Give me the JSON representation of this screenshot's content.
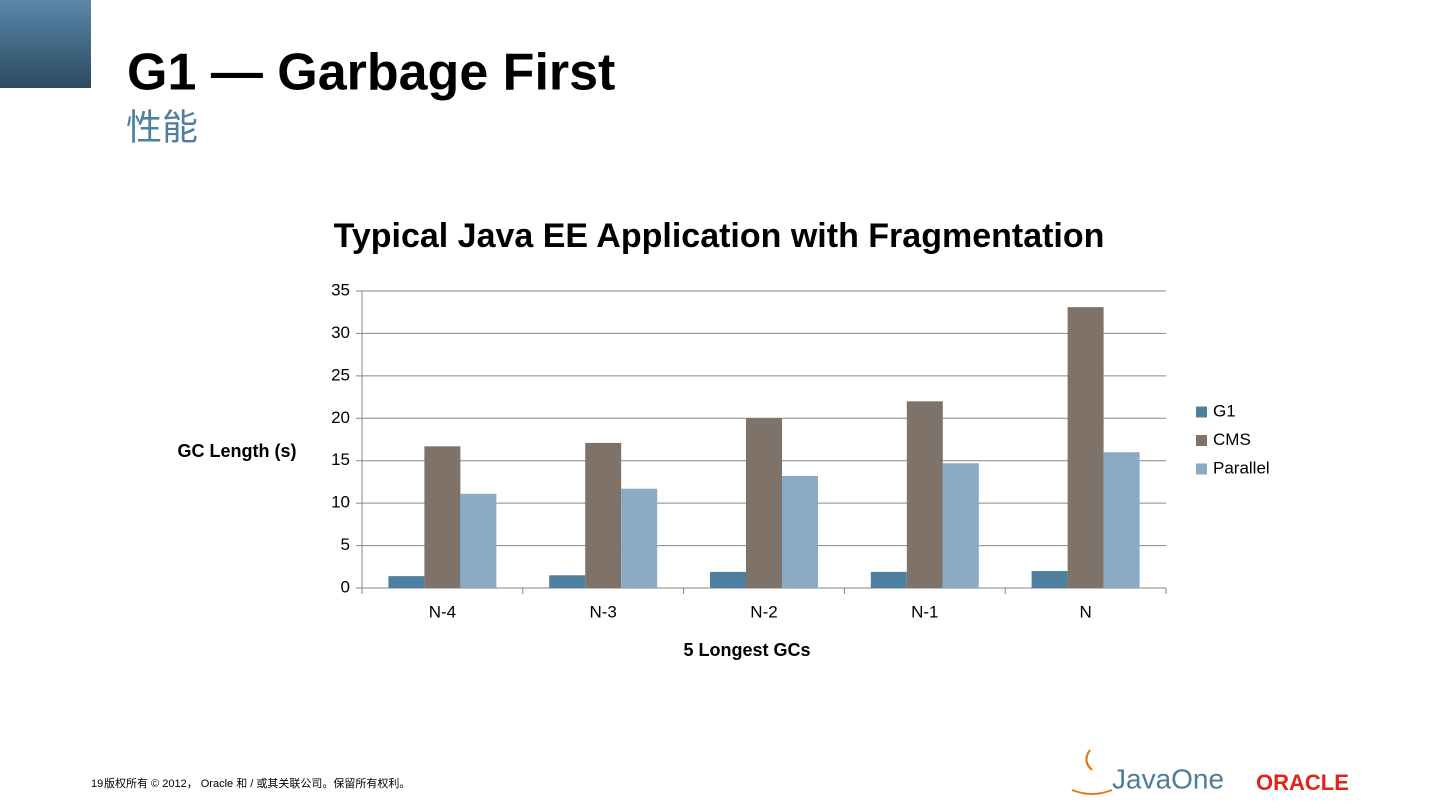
{
  "slide": {
    "title": "G1 — Garbage First",
    "subtitle": "性能",
    "page_number": "19",
    "footer": "版权所有 © 2012， Oracle 和 / 或其关联公司。保留所有权利。",
    "logos": {
      "javaone": "JavaOne",
      "oracle": "ORACLE"
    }
  },
  "chart_data": {
    "type": "bar",
    "title": "Typical Java EE Application with Fragmentation",
    "y_label": "GC Length (s)",
    "x_label": "5 Longest GCs",
    "categories": [
      "N-4",
      "N-3",
      "N-2",
      "N-1",
      "N"
    ],
    "series": [
      {
        "name": "G1",
        "color": "#4f7f9f",
        "values": [
          1.4,
          1.5,
          1.9,
          1.9,
          2.0
        ]
      },
      {
        "name": "CMS",
        "color": "#7f7369",
        "values": [
          16.7,
          17.1,
          20.0,
          22.0,
          33.1
        ]
      },
      {
        "name": "Parallel",
        "color": "#8aabc6",
        "values": [
          11.1,
          11.7,
          13.2,
          14.7,
          16.0
        ]
      }
    ],
    "ylim": [
      0,
      35
    ],
    "yticks": [
      0,
      5,
      10,
      15,
      20,
      25,
      30,
      35
    ],
    "grid": true,
    "legend": "right"
  }
}
